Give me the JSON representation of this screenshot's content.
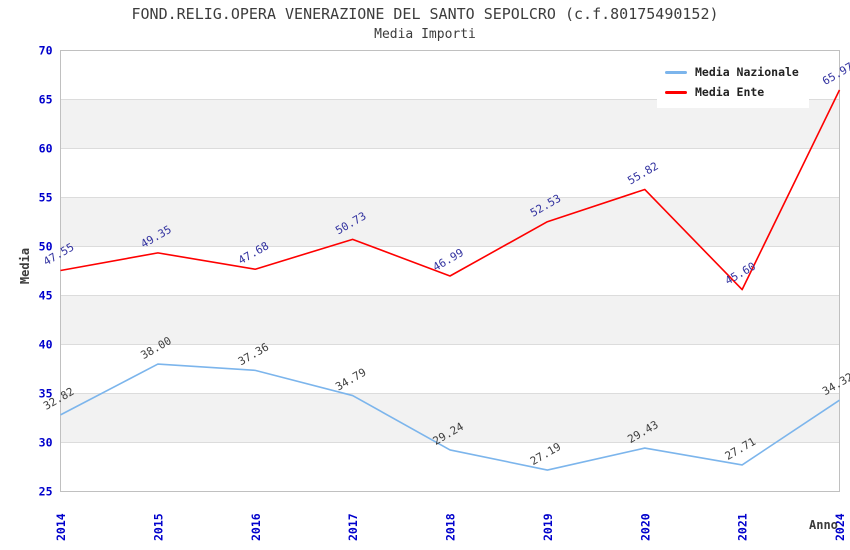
{
  "chart_data": {
    "type": "line",
    "title": "FOND.RELIG.OPERA VENERAZIONE DEL SANTO SEPOLCRO (c.f.80175490152)",
    "subtitle": "Media Importi",
    "categories": [
      "2014",
      "2015",
      "2016",
      "2017",
      "2018",
      "2019",
      "2020",
      "2021",
      "2024"
    ],
    "series": [
      {
        "name": "Media Nazionale",
        "color": "#7cb5ec",
        "label_color": "#3f3f3f",
        "values": [
          32.82,
          38.0,
          37.36,
          34.79,
          29.24,
          27.19,
          29.43,
          27.71,
          34.32
        ]
      },
      {
        "name": "Media Ente",
        "color": "#fe0000",
        "label_color": "#3333a0",
        "values": [
          47.55,
          49.35,
          47.68,
          50.73,
          46.99,
          52.53,
          55.82,
          45.6,
          65.97
        ]
      }
    ],
    "xlabel": "Anno",
    "ylabel": "Media",
    "ylim": [
      25,
      70
    ],
    "ytick_step": 5,
    "grid": true,
    "legend_position": "top-right",
    "plot_band_color": "#f2f2f2",
    "grid_color": "#dcdcdc",
    "border_color": "#c0c0c0",
    "tick_label_color": "#0000cc",
    "value_decimals": 2
  }
}
